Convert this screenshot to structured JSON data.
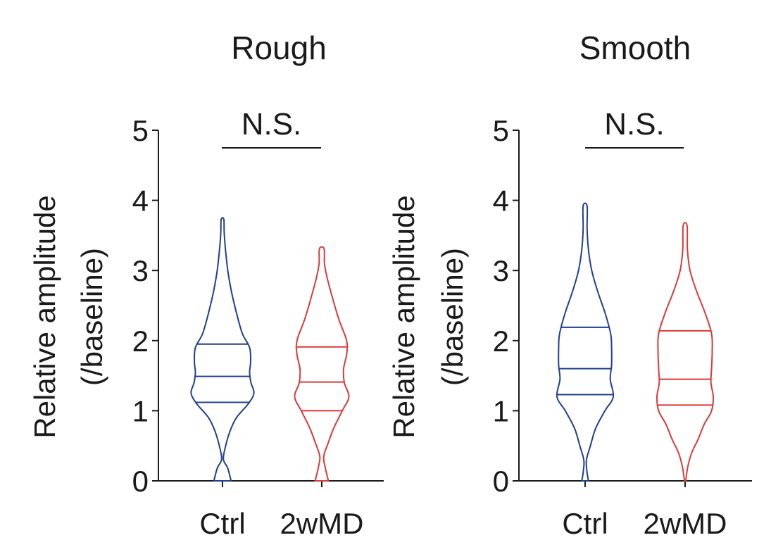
{
  "chart_data": [
    {
      "type": "violin",
      "title": "Rough",
      "ylabel": [
        "Relative amplitude",
        "(/baseline)"
      ],
      "ylim": [
        0,
        5
      ],
      "yticks": [
        "0",
        "1",
        "2",
        "3",
        "4",
        "5"
      ],
      "categories": [
        "Ctrl",
        "2wMD"
      ],
      "colors": [
        "#1f3f8f",
        "#d93a3a"
      ],
      "annotation": "N.S.",
      "series": [
        {
          "quartiles": [
            1.12,
            1.49,
            1.95
          ],
          "max": 3.73,
          "density": [
            [
              0.0,
              0.26
            ],
            [
              0.18,
              0.16
            ],
            [
              0.3,
              0.03
            ],
            [
              0.45,
              0.07
            ],
            [
              0.7,
              0.22
            ],
            [
              0.9,
              0.42
            ],
            [
              1.1,
              0.78
            ],
            [
              1.25,
              0.95
            ],
            [
              1.4,
              0.86
            ],
            [
              1.55,
              0.82
            ],
            [
              1.7,
              0.85
            ],
            [
              1.9,
              0.82
            ],
            [
              2.1,
              0.6
            ],
            [
              2.4,
              0.42
            ],
            [
              2.7,
              0.27
            ],
            [
              3.0,
              0.16
            ],
            [
              3.3,
              0.09
            ],
            [
              3.55,
              0.05
            ],
            [
              3.73,
              0.04
            ]
          ]
        },
        {
          "quartiles": [
            1.0,
            1.41,
            1.91
          ],
          "max": 3.31,
          "density": [
            [
              0.0,
              0.2
            ],
            [
              0.2,
              0.1
            ],
            [
              0.35,
              0.06
            ],
            [
              0.55,
              0.2
            ],
            [
              0.75,
              0.36
            ],
            [
              1.0,
              0.62
            ],
            [
              1.2,
              0.82
            ],
            [
              1.4,
              0.68
            ],
            [
              1.6,
              0.66
            ],
            [
              1.8,
              0.75
            ],
            [
              2.0,
              0.75
            ],
            [
              2.3,
              0.52
            ],
            [
              2.6,
              0.33
            ],
            [
              2.9,
              0.16
            ],
            [
              3.1,
              0.08
            ],
            [
              3.31,
              0.07
            ]
          ]
        }
      ]
    },
    {
      "type": "violin",
      "title": "Smooth",
      "ylabel": [
        "Relative amplitude",
        "(/baseline)"
      ],
      "ylim": [
        0,
        5
      ],
      "yticks": [
        "0",
        "1",
        "2",
        "3",
        "4",
        "5"
      ],
      "categories": [
        "Ctrl",
        "2wMD"
      ],
      "colors": [
        "#1f3f8f",
        "#d93a3a"
      ],
      "annotation": "N.S.",
      "series": [
        {
          "quartiles": [
            1.23,
            1.6,
            2.19
          ],
          "max": 3.92,
          "density": [
            [
              0.0,
              0.1
            ],
            [
              0.15,
              0.05
            ],
            [
              0.3,
              0.04
            ],
            [
              0.5,
              0.16
            ],
            [
              0.75,
              0.32
            ],
            [
              1.0,
              0.6
            ],
            [
              1.2,
              0.85
            ],
            [
              1.45,
              0.76
            ],
            [
              1.65,
              0.8
            ],
            [
              1.9,
              0.8
            ],
            [
              2.1,
              0.77
            ],
            [
              2.4,
              0.6
            ],
            [
              2.7,
              0.38
            ],
            [
              3.0,
              0.2
            ],
            [
              3.3,
              0.1
            ],
            [
              3.6,
              0.06
            ],
            [
              3.92,
              0.06
            ]
          ]
        },
        {
          "quartiles": [
            1.08,
            1.45,
            2.14
          ],
          "max": 3.64,
          "density": [
            [
              0.0,
              0.02
            ],
            [
              0.2,
              0.08
            ],
            [
              0.4,
              0.2
            ],
            [
              0.6,
              0.4
            ],
            [
              0.8,
              0.57
            ],
            [
              1.0,
              0.8
            ],
            [
              1.2,
              0.85
            ],
            [
              1.4,
              0.78
            ],
            [
              1.6,
              0.8
            ],
            [
              1.85,
              0.82
            ],
            [
              2.1,
              0.8
            ],
            [
              2.4,
              0.6
            ],
            [
              2.7,
              0.35
            ],
            [
              3.0,
              0.15
            ],
            [
              3.3,
              0.07
            ],
            [
              3.64,
              0.06
            ]
          ]
        }
      ]
    }
  ]
}
